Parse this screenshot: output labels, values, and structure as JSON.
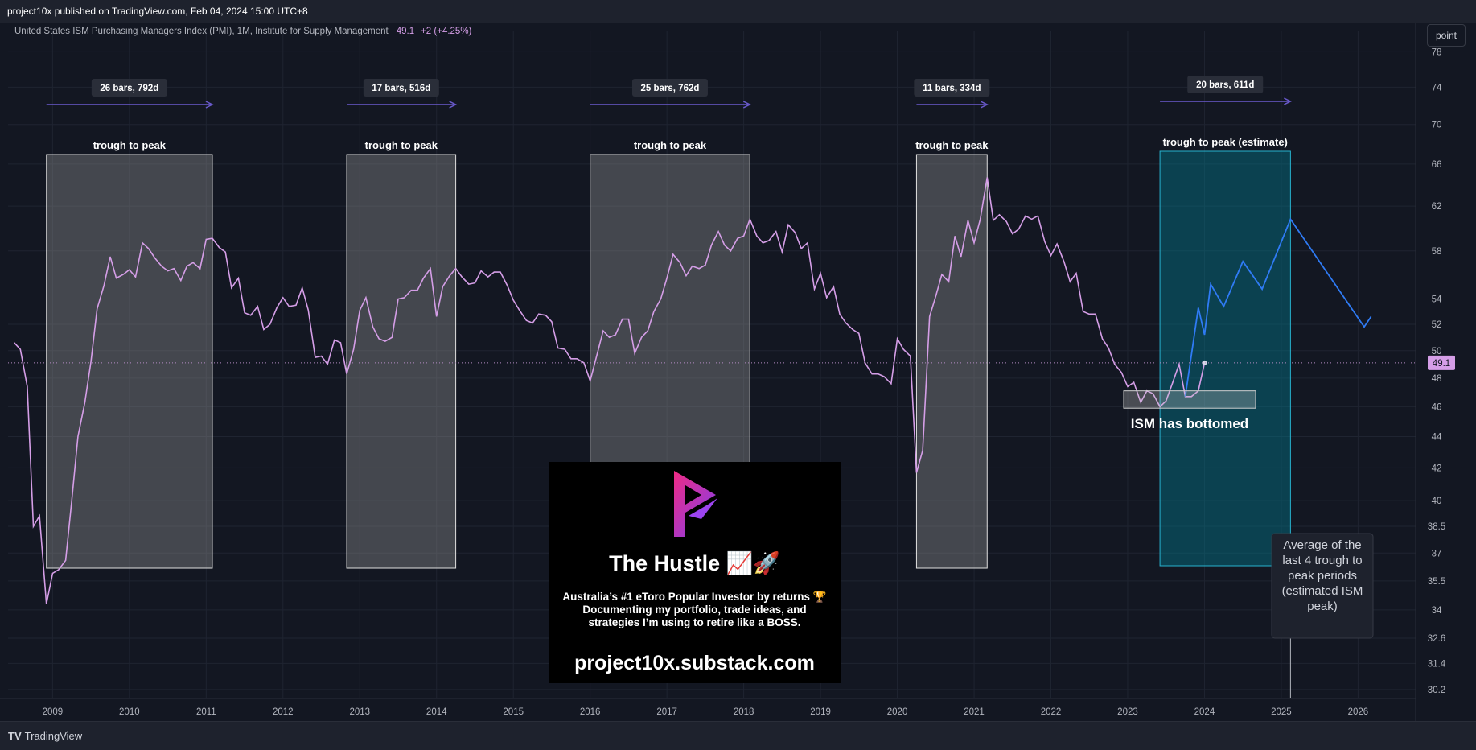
{
  "header": {
    "published": "project10x published on TradingView.com, Feb 04, 2024 15:00 UTC+8",
    "footer_brand": "TradingView",
    "toolbar_button": "point"
  },
  "chart_data": {
    "type": "line",
    "title": "United States ISM Purchasing Managers Index (PMI), 1M, Institute for Supply Management",
    "last_value": "49.1",
    "change": "+2 (+4.25%)",
    "x_ticks": [
      "2009",
      "2010",
      "2011",
      "2012",
      "2013",
      "2014",
      "2015",
      "2016",
      "2017",
      "2018",
      "2019",
      "2020",
      "2021",
      "2022",
      "2023",
      "2024",
      "2025",
      "2026"
    ],
    "y_ticks": [
      "78",
      "74",
      "70",
      "66",
      "62",
      "58",
      "54",
      "52",
      "50",
      "48",
      "46",
      "44",
      "42",
      "40",
      "38.5",
      "37",
      "35.5",
      "34",
      "32.6",
      "31.4",
      "30.2"
    ],
    "y_scale": "log",
    "xlim": [
      2008.42,
      2026.75
    ],
    "ylim": [
      29.8,
      80.5
    ],
    "series": [
      {
        "color": "#d59ee7",
        "points": [
          [
            2008.5,
            50.6
          ],
          [
            2008.58,
            50.1
          ],
          [
            2008.67,
            47.4
          ],
          [
            2008.75,
            38.5
          ],
          [
            2008.83,
            39.1
          ],
          [
            2008.92,
            34.3
          ],
          [
            2009.0,
            35.9
          ],
          [
            2009.08,
            36.1
          ],
          [
            2009.17,
            36.6
          ],
          [
            2009.25,
            40.0
          ],
          [
            2009.33,
            44.0
          ],
          [
            2009.42,
            46.3
          ],
          [
            2009.5,
            49.2
          ],
          [
            2009.58,
            53.2
          ],
          [
            2009.67,
            55.1
          ],
          [
            2009.75,
            57.5
          ],
          [
            2009.83,
            55.7
          ],
          [
            2009.92,
            56.0
          ],
          [
            2010.0,
            56.4
          ],
          [
            2010.08,
            55.8
          ],
          [
            2010.17,
            58.7
          ],
          [
            2010.25,
            58.2
          ],
          [
            2010.33,
            57.4
          ],
          [
            2010.42,
            56.7
          ],
          [
            2010.5,
            56.3
          ],
          [
            2010.58,
            56.5
          ],
          [
            2010.67,
            55.5
          ],
          [
            2010.75,
            56.7
          ],
          [
            2010.83,
            57.0
          ],
          [
            2010.92,
            56.5
          ],
          [
            2011.0,
            59.0
          ],
          [
            2011.08,
            59.1
          ],
          [
            2011.17,
            58.3
          ],
          [
            2011.25,
            57.9
          ],
          [
            2011.33,
            54.9
          ],
          [
            2011.42,
            55.7
          ],
          [
            2011.5,
            52.9
          ],
          [
            2011.58,
            52.7
          ],
          [
            2011.67,
            53.4
          ],
          [
            2011.75,
            51.6
          ],
          [
            2011.83,
            52.0
          ],
          [
            2011.92,
            53.3
          ],
          [
            2012.0,
            54.1
          ],
          [
            2012.08,
            53.4
          ],
          [
            2012.17,
            53.5
          ],
          [
            2012.25,
            54.9
          ],
          [
            2012.33,
            53.1
          ],
          [
            2012.42,
            49.5
          ],
          [
            2012.5,
            49.6
          ],
          [
            2012.58,
            49.0
          ],
          [
            2012.67,
            50.8
          ],
          [
            2012.75,
            50.6
          ],
          [
            2012.83,
            48.3
          ],
          [
            2012.92,
            50.1
          ],
          [
            2013.0,
            53.1
          ],
          [
            2013.08,
            54.1
          ],
          [
            2013.17,
            51.8
          ],
          [
            2013.25,
            50.9
          ],
          [
            2013.33,
            50.7
          ],
          [
            2013.42,
            51.0
          ],
          [
            2013.5,
            54.0
          ],
          [
            2013.58,
            54.1
          ],
          [
            2013.67,
            54.7
          ],
          [
            2013.75,
            54.7
          ],
          [
            2013.83,
            55.7
          ],
          [
            2013.92,
            56.5
          ],
          [
            2014.0,
            52.6
          ],
          [
            2014.08,
            55.0
          ],
          [
            2014.17,
            55.9
          ],
          [
            2014.25,
            56.5
          ],
          [
            2014.33,
            55.8
          ],
          [
            2014.42,
            55.2
          ],
          [
            2014.5,
            55.3
          ],
          [
            2014.58,
            56.3
          ],
          [
            2014.67,
            55.8
          ],
          [
            2014.75,
            56.2
          ],
          [
            2014.83,
            56.2
          ],
          [
            2014.92,
            55.1
          ],
          [
            2015.0,
            53.9
          ],
          [
            2015.08,
            53.1
          ],
          [
            2015.17,
            52.3
          ],
          [
            2015.25,
            52.1
          ],
          [
            2015.33,
            52.8
          ],
          [
            2015.42,
            52.7
          ],
          [
            2015.5,
            52.2
          ],
          [
            2015.58,
            50.2
          ],
          [
            2015.67,
            50.1
          ],
          [
            2015.75,
            49.4
          ],
          [
            2015.83,
            49.4
          ],
          [
            2015.92,
            49.1
          ],
          [
            2016.0,
            47.8
          ],
          [
            2016.08,
            49.5
          ],
          [
            2016.17,
            51.5
          ],
          [
            2016.25,
            51.0
          ],
          [
            2016.33,
            51.2
          ],
          [
            2016.42,
            52.4
          ],
          [
            2016.5,
            52.4
          ],
          [
            2016.58,
            49.8
          ],
          [
            2016.67,
            51.0
          ],
          [
            2016.75,
            51.5
          ],
          [
            2016.83,
            53.0
          ],
          [
            2016.92,
            54.0
          ],
          [
            2017.0,
            55.7
          ],
          [
            2017.08,
            57.7
          ],
          [
            2017.17,
            57.0
          ],
          [
            2017.25,
            55.9
          ],
          [
            2017.33,
            56.7
          ],
          [
            2017.42,
            56.5
          ],
          [
            2017.5,
            56.8
          ],
          [
            2017.58,
            58.5
          ],
          [
            2017.67,
            59.7
          ],
          [
            2017.75,
            58.5
          ],
          [
            2017.83,
            58.0
          ],
          [
            2017.92,
            59.1
          ],
          [
            2018.0,
            59.3
          ],
          [
            2018.08,
            60.8
          ],
          [
            2018.17,
            59.3
          ],
          [
            2018.25,
            58.7
          ],
          [
            2018.33,
            58.9
          ],
          [
            2018.42,
            59.7
          ],
          [
            2018.5,
            57.9
          ],
          [
            2018.58,
            60.3
          ],
          [
            2018.67,
            59.6
          ],
          [
            2018.75,
            58.2
          ],
          [
            2018.83,
            58.7
          ],
          [
            2018.92,
            54.8
          ],
          [
            2019.0,
            56.1
          ],
          [
            2019.08,
            54.1
          ],
          [
            2019.17,
            55.0
          ],
          [
            2019.25,
            52.8
          ],
          [
            2019.33,
            52.1
          ],
          [
            2019.42,
            51.6
          ],
          [
            2019.5,
            51.3
          ],
          [
            2019.58,
            49.1
          ],
          [
            2019.67,
            48.3
          ],
          [
            2019.75,
            48.3
          ],
          [
            2019.83,
            48.1
          ],
          [
            2019.92,
            47.6
          ],
          [
            2020.0,
            50.9
          ],
          [
            2020.08,
            50.1
          ],
          [
            2020.17,
            49.6
          ],
          [
            2020.25,
            41.7
          ],
          [
            2020.33,
            43.1
          ],
          [
            2020.42,
            52.6
          ],
          [
            2020.5,
            54.2
          ],
          [
            2020.58,
            56.0
          ],
          [
            2020.67,
            55.4
          ],
          [
            2020.75,
            59.3
          ],
          [
            2020.83,
            57.5
          ],
          [
            2020.92,
            60.7
          ],
          [
            2021.0,
            58.7
          ],
          [
            2021.08,
            60.8
          ],
          [
            2021.17,
            64.7
          ],
          [
            2021.25,
            60.7
          ],
          [
            2021.33,
            61.2
          ],
          [
            2021.42,
            60.6
          ],
          [
            2021.5,
            59.5
          ],
          [
            2021.58,
            59.9
          ],
          [
            2021.67,
            61.1
          ],
          [
            2021.75,
            60.8
          ],
          [
            2021.83,
            61.1
          ],
          [
            2021.92,
            58.8
          ],
          [
            2022.0,
            57.6
          ],
          [
            2022.08,
            58.6
          ],
          [
            2022.17,
            57.1
          ],
          [
            2022.25,
            55.4
          ],
          [
            2022.33,
            56.1
          ],
          [
            2022.42,
            53.0
          ],
          [
            2022.5,
            52.8
          ],
          [
            2022.58,
            52.8
          ],
          [
            2022.67,
            50.9
          ],
          [
            2022.75,
            50.2
          ],
          [
            2022.83,
            49.0
          ],
          [
            2022.92,
            48.4
          ],
          [
            2023.0,
            47.4
          ],
          [
            2023.08,
            47.7
          ],
          [
            2023.17,
            46.3
          ],
          [
            2023.25,
            47.1
          ],
          [
            2023.33,
            46.9
          ],
          [
            2023.42,
            46.0
          ],
          [
            2023.5,
            46.4
          ],
          [
            2023.58,
            47.6
          ],
          [
            2023.67,
            49.0
          ],
          [
            2023.75,
            46.7
          ],
          [
            2023.83,
            46.7
          ],
          [
            2023.92,
            47.1
          ],
          [
            2024.0,
            49.1
          ]
        ]
      },
      {
        "color": "#2f7bf5",
        "points": [
          [
            2023.75,
            46.7
          ],
          [
            2023.92,
            53.3
          ],
          [
            2024.0,
            51.2
          ],
          [
            2024.08,
            55.2
          ],
          [
            2024.25,
            53.4
          ],
          [
            2024.5,
            57.1
          ],
          [
            2024.75,
            54.8
          ],
          [
            2025.12,
            60.8
          ],
          [
            2026.08,
            51.8
          ],
          [
            2026.17,
            52.6
          ]
        ]
      }
    ],
    "annotations": {
      "trough_label": "trough to peak",
      "estimate_label": "trough to peak (estimate)",
      "bottom_label": "ISM has bottomed",
      "average_note": [
        "Average of the",
        "last 4 trough to",
        "peak periods",
        "(estimated ISM",
        "peak)"
      ],
      "ranges": [
        {
          "label": "26 bars, 792d",
          "x0": 2008.92,
          "x1": 2011.08,
          "estimate": false
        },
        {
          "label": "17 bars, 516d",
          "x0": 2012.83,
          "x1": 2014.25,
          "estimate": false
        },
        {
          "label": "25 bars, 762d",
          "x0": 2016.0,
          "x1": 2018.08,
          "estimate": false
        },
        {
          "label": "11 bars, 334d",
          "x0": 2020.25,
          "x1": 2021.17,
          "estimate": false
        },
        {
          "label": "20 bars, 611d",
          "x0": 2023.42,
          "x1": 2025.12,
          "estimate": true
        }
      ]
    }
  },
  "promo": {
    "title": "The Hustle 📈🚀",
    "desc": [
      "Australia’s #1 eToro Popular Investor by returns 🏆",
      "Documenting my portfolio, trade ideas, and",
      "strategies I’m using to retire like a BOSS."
    ],
    "url": "project10x.substack.com"
  }
}
